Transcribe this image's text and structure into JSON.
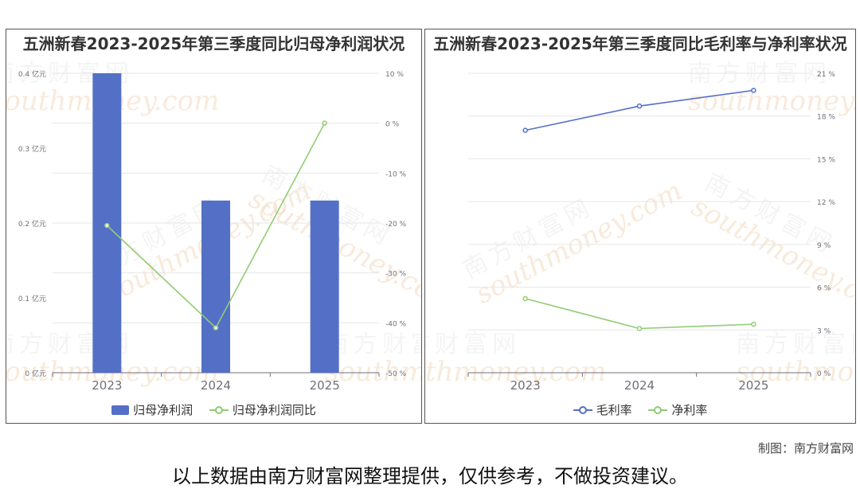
{
  "watermark": {
    "cn": "南方财富网",
    "en": "southmoney.com"
  },
  "credit": "制图：南方财富网",
  "disclaimer": "以上数据由南方财富网整理提供，仅供参考，不做投资建议。",
  "colors": {
    "bar": "#5470c6",
    "green": "#91cc75",
    "blue": "#5470c6",
    "grid": "#e6e6e6",
    "axis": "#6e7079"
  },
  "chart_data": [
    {
      "type": "bar",
      "title": "五洲新春2023-2025年第三季度同比归母净利润状况",
      "categories": [
        "2023",
        "2024",
        "2025"
      ],
      "series": [
        {
          "name": "归母净利润",
          "type": "bar",
          "axis": "left",
          "values": [
            0.4,
            0.23,
            0.23
          ]
        },
        {
          "name": "归母净利润同比",
          "type": "line",
          "axis": "right",
          "values": [
            -20.5,
            -41,
            0
          ]
        }
      ],
      "y_left": {
        "ticks": [
          0,
          0.1,
          0.2,
          0.3,
          0.4
        ],
        "tick_labels": [
          "0 亿元",
          "0.1 亿元",
          "0.2 亿元",
          "0.3 亿元",
          "0.4 亿元"
        ],
        "range": [
          0,
          0.4
        ]
      },
      "y_right": {
        "ticks": [
          -50,
          -40,
          -30,
          -20,
          -10,
          0,
          10
        ],
        "tick_labels": [
          "-50 %",
          "-40 %",
          "-30 %",
          "-20 %",
          "-10 %",
          "0 %",
          "10 %"
        ],
        "range": [
          -50,
          10
        ]
      },
      "grid": true,
      "legend": "bottom"
    },
    {
      "type": "line",
      "title": "五洲新春2023-2025年第三季度同比毛利率与净利率状况",
      "categories": [
        "2023",
        "2024",
        "2025"
      ],
      "series": [
        {
          "name": "毛利率",
          "values": [
            17.0,
            18.7,
            19.8
          ],
          "color": "#5470c6"
        },
        {
          "name": "净利率",
          "values": [
            5.2,
            3.1,
            3.4
          ],
          "color": "#91cc75"
        }
      ],
      "y_right": {
        "ticks": [
          0,
          3,
          6,
          9,
          12,
          15,
          18,
          21
        ],
        "tick_labels": [
          "0 %",
          "3 %",
          "6 %",
          "9 %",
          "12 %",
          "15 %",
          "18 %",
          "21 %"
        ],
        "range": [
          0,
          21
        ]
      },
      "grid": true,
      "legend": "bottom"
    }
  ]
}
